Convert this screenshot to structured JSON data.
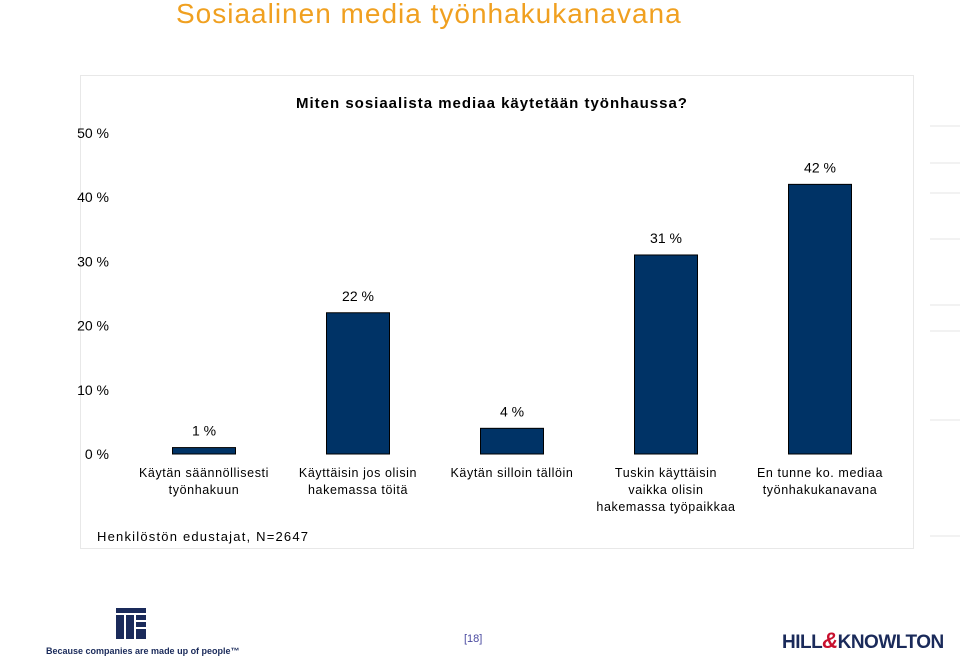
{
  "slide": {
    "title": "Sosiaalinen media työnhakukanavana",
    "footer_note": "Henkilöstön edustajat, N=2647",
    "page_number": "[18]",
    "tagline": "Because companies are made up of people™",
    "right_logo": {
      "part1": "HILL",
      "amp": "&",
      "part2": "KNOWLTON"
    }
  },
  "colors": {
    "bar": "#003366",
    "title": "#f0a020"
  },
  "chart_data": {
    "type": "bar",
    "title": "Miten sosiaalista mediaa käytetään työnhaussa?",
    "categories": [
      [
        "Käytän säännöllisesti",
        "työnhakuun"
      ],
      [
        "Käyttäisin jos olisin",
        "hakemassa töitä"
      ],
      [
        "Käytän silloin tällöin"
      ],
      [
        "Tuskin käyttäisin",
        "vaikka olisin",
        "hakemassa työpaikkaa"
      ],
      [
        "En tunne ko. mediaa",
        "työnhakukanavana"
      ]
    ],
    "values": [
      1,
      22,
      4,
      31,
      42
    ],
    "data_labels": [
      "1 %",
      "22 %",
      "4 %",
      "31 %",
      "42 %"
    ],
    "ylim": [
      0,
      50
    ],
    "yticks": [
      "0 %",
      "10 %",
      "20 %",
      "30 %",
      "40 %",
      "50 %"
    ],
    "grid": false,
    "legend": false
  }
}
